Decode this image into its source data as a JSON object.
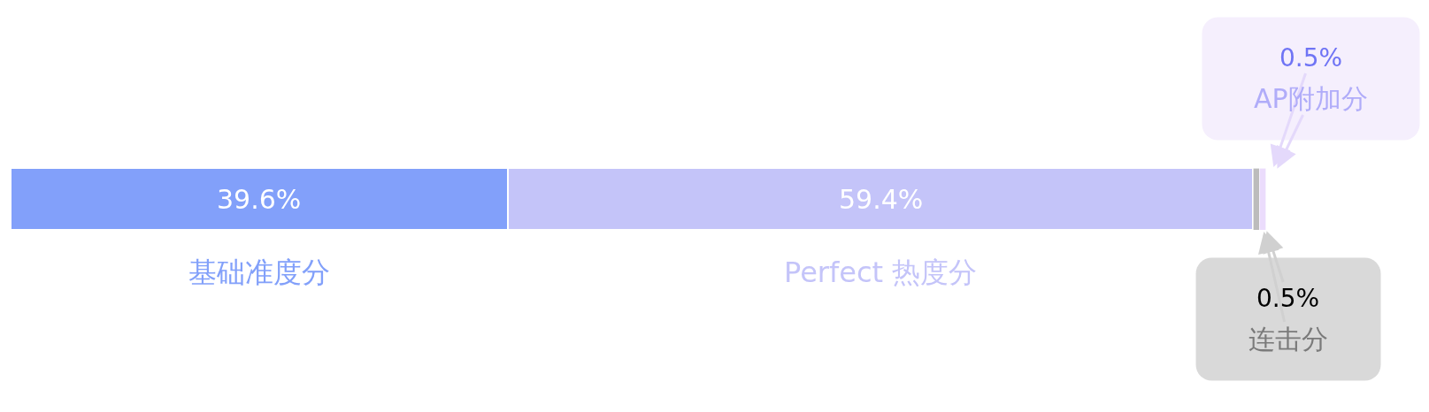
{
  "chart_data": {
    "type": "bar",
    "orientation": "horizontal",
    "stacked": true,
    "categories": [
      null
    ],
    "xlim": [
      0,
      113
    ],
    "tick_labels": false,
    "legend": false,
    "series": [
      {
        "name": "基础准度分",
        "color": "#82a0fa",
        "values": [
          39.6
        ],
        "value_labels": [
          "39.6%"
        ]
      },
      {
        "name": "Perfect 热度分",
        "color": "#c4c4f9",
        "values": [
          59.4
        ],
        "value_labels": [
          "59.4%"
        ]
      },
      {
        "name": "连击分",
        "color": "#bcbcbc",
        "values": [
          0.5
        ],
        "value_labels": [
          "0.5%"
        ]
      },
      {
        "name": "AP附加分",
        "color": "#ebdcfc",
        "values": [
          0.5
        ],
        "value_labels": [
          "0.5%"
        ]
      }
    ]
  }
}
